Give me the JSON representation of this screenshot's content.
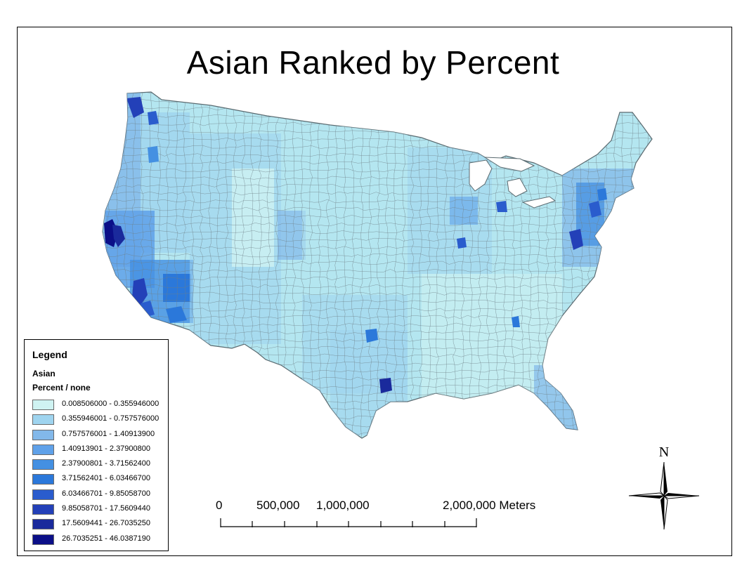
{
  "title": "Asian Ranked by Percent",
  "legend": {
    "title": "Legend",
    "layer": "Asian",
    "field": "Percent / none",
    "classes": [
      {
        "label": "0.008506000 - 0.355946000",
        "color": "#cff3f2"
      },
      {
        "label": "0.355946001 - 0.757576000",
        "color": "#9fd4ef"
      },
      {
        "label": "0.757576001 - 1.40913900",
        "color": "#82b8ea"
      },
      {
        "label": "1.40913901 - 2.37900800",
        "color": "#5fa1e9"
      },
      {
        "label": "2.37900801 - 3.71562400",
        "color": "#4490e2"
      },
      {
        "label": "3.71562401 - 6.03466700",
        "color": "#2b78da"
      },
      {
        "label": "6.03466701 - 9.85058700",
        "color": "#2a5ccd"
      },
      {
        "label": "9.85058701 - 17.5609440",
        "color": "#2340b8"
      },
      {
        "label": "17.5609441 - 26.7035250",
        "color": "#1a2a9c"
      },
      {
        "label": "26.7035251 - 46.0387190",
        "color": "#0b0f88"
      }
    ]
  },
  "scale_bar": {
    "labels": [
      "0",
      "500,000",
      "1,000,000",
      "2,000,000 Meters"
    ]
  },
  "north_arrow": {
    "label": "N"
  }
}
